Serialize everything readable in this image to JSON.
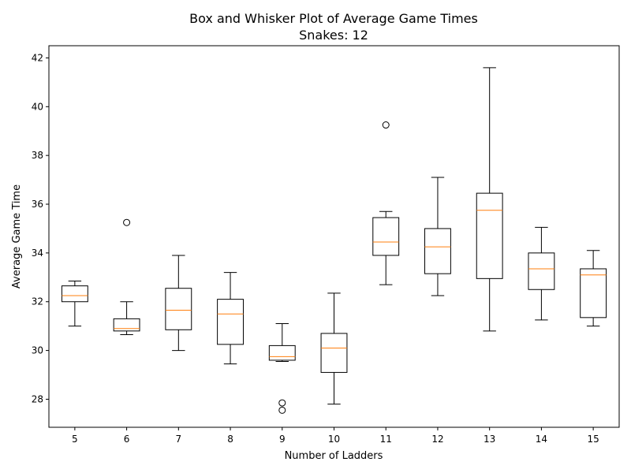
{
  "chart_data": {
    "type": "box",
    "title": "Box and Whisker Plot of Average Game Times",
    "subtitle": "Snakes: 12",
    "xlabel": "Number of Ladders",
    "ylabel": "Average Game Time",
    "ylim": [
      26.85,
      42.5
    ],
    "yticks": [
      28,
      30,
      32,
      34,
      36,
      38,
      40,
      42
    ],
    "grid": false,
    "box_color": "#000000",
    "median_color": "#ff7f0e",
    "categories": [
      "5",
      "6",
      "7",
      "8",
      "9",
      "10",
      "11",
      "12",
      "13",
      "14",
      "15"
    ],
    "boxes": [
      {
        "label": "5",
        "whislo": 31.0,
        "q1": 32.0,
        "med": 32.25,
        "q3": 32.65,
        "whishi": 32.85,
        "fliers": []
      },
      {
        "label": "6",
        "whislo": 30.65,
        "q1": 30.8,
        "med": 30.9,
        "q3": 31.3,
        "whishi": 32.0,
        "fliers": [
          35.25
        ]
      },
      {
        "label": "7",
        "whislo": 30.0,
        "q1": 30.85,
        "med": 31.65,
        "q3": 32.55,
        "whishi": 33.9,
        "fliers": []
      },
      {
        "label": "8",
        "whislo": 29.45,
        "q1": 30.25,
        "med": 31.5,
        "q3": 32.1,
        "whishi": 33.2,
        "fliers": []
      },
      {
        "label": "9",
        "whislo": 29.55,
        "q1": 29.6,
        "med": 29.75,
        "q3": 30.2,
        "whishi": 31.1,
        "fliers": [
          27.85,
          27.55
        ]
      },
      {
        "label": "10",
        "whislo": 27.8,
        "q1": 29.1,
        "med": 30.1,
        "q3": 30.7,
        "whishi": 32.35,
        "fliers": []
      },
      {
        "label": "11",
        "whislo": 32.7,
        "q1": 33.9,
        "med": 34.45,
        "q3": 35.45,
        "whishi": 35.7,
        "fliers": [
          39.25
        ]
      },
      {
        "label": "12",
        "whislo": 32.25,
        "q1": 33.15,
        "med": 34.25,
        "q3": 35.0,
        "whishi": 37.1,
        "fliers": []
      },
      {
        "label": "13",
        "whislo": 30.8,
        "q1": 32.95,
        "med": 35.75,
        "q3": 36.45,
        "whishi": 41.6,
        "fliers": []
      },
      {
        "label": "14",
        "whislo": 31.25,
        "q1": 32.5,
        "med": 33.35,
        "q3": 34.0,
        "whishi": 35.05,
        "fliers": []
      },
      {
        "label": "15",
        "whislo": 31.0,
        "q1": 31.35,
        "med": 33.1,
        "q3": 33.35,
        "whishi": 34.1,
        "fliers": []
      }
    ]
  }
}
